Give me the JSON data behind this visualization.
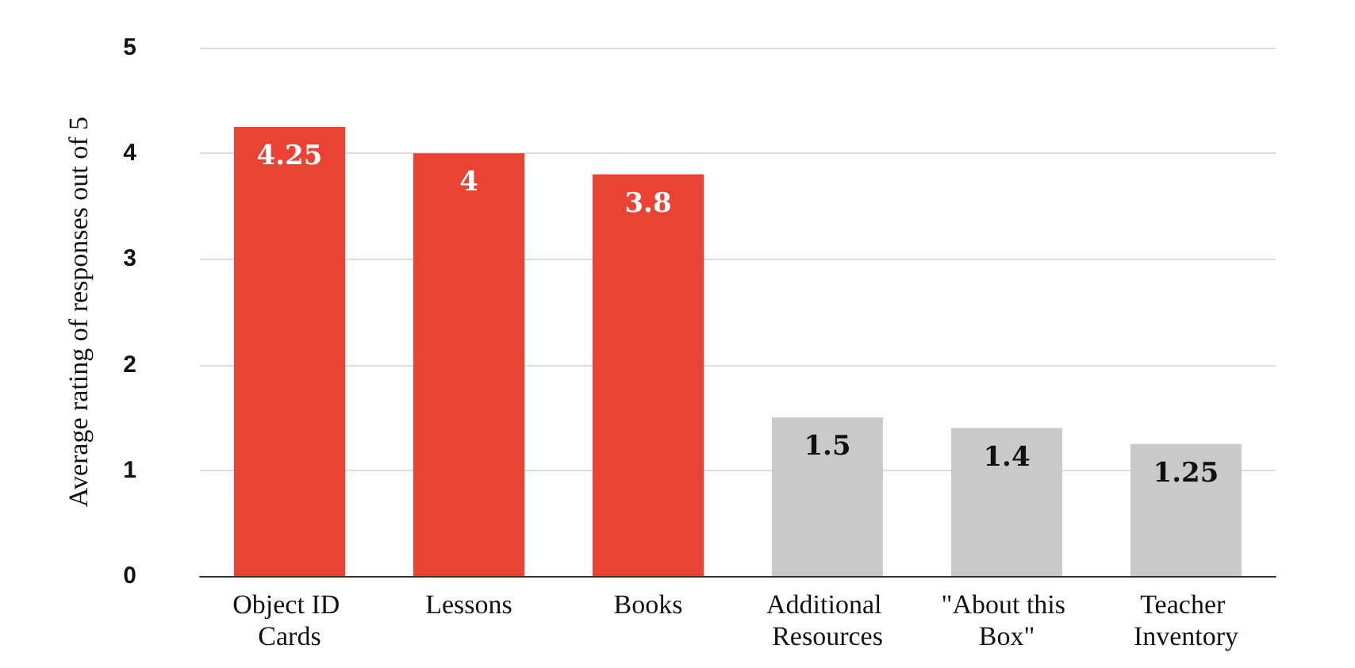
{
  "chart_data": {
    "type": "bar",
    "ylabel": "Average rating of responses out of 5",
    "categories": [
      "Object ID Cards",
      "Lessons",
      "Books",
      "Additional Resources",
      "\"About this Box\"",
      "Teacher Inventory"
    ],
    "values": [
      4.25,
      4,
      3.8,
      1.5,
      1.4,
      1.25
    ],
    "colors": [
      "#ea4335",
      "#ea4335",
      "#ea4335",
      "#c9c9c9",
      "#c9c9c9",
      "#c9c9c9"
    ],
    "ylim": [
      0,
      5
    ],
    "yticks": [
      0,
      1,
      2,
      3,
      4,
      5
    ],
    "grid": "y",
    "data_labels": true
  }
}
